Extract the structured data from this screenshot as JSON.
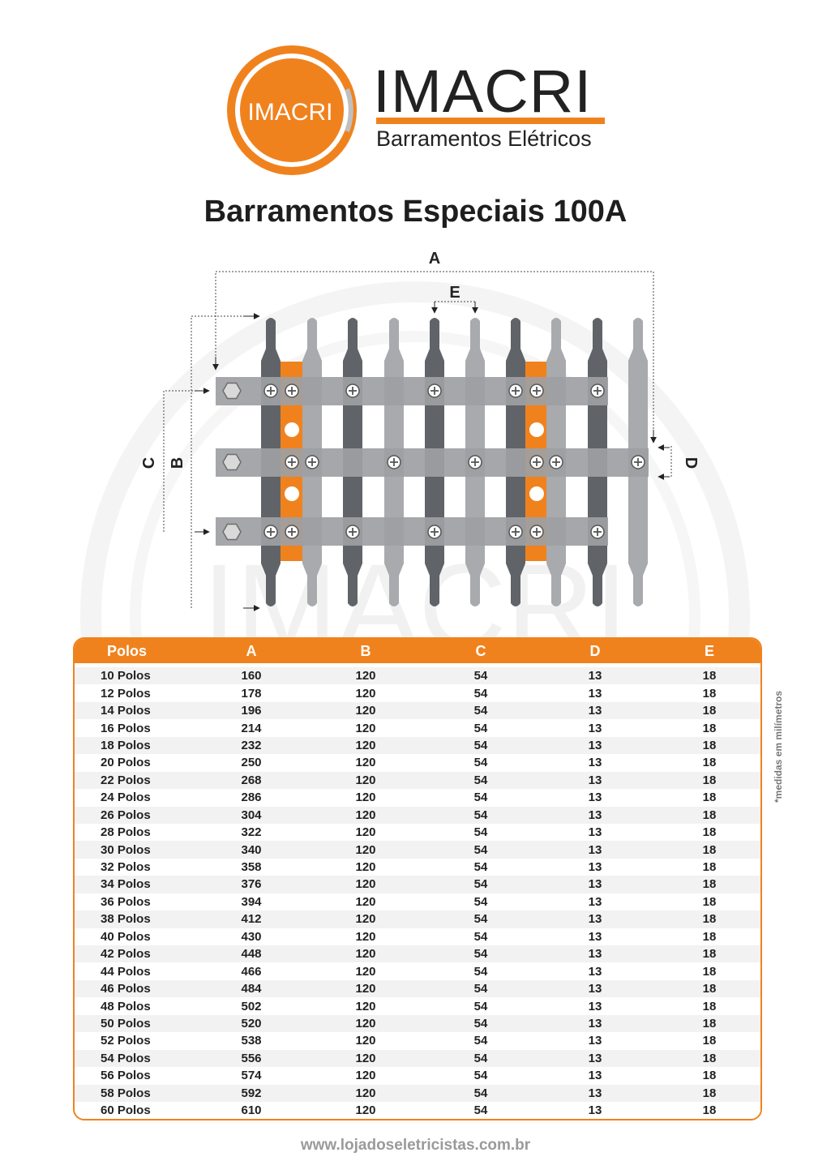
{
  "brand": {
    "logo_text": "IMACRI",
    "name": "IMACRI",
    "subtitle": "Barramentos Elétricos",
    "accent_color": "#f0821e",
    "watermark_text": "IMACRI"
  },
  "title": "Barramentos Especiais 100A",
  "diagram": {
    "label_a": "A",
    "label_b": "B",
    "label_c": "C",
    "label_d": "D",
    "label_e": "E"
  },
  "table": {
    "headers": [
      "Polos",
      "A",
      "B",
      "C",
      "D",
      "E"
    ],
    "rows": [
      [
        "10 Polos",
        "160",
        "120",
        "54",
        "13",
        "18"
      ],
      [
        "12 Polos",
        "178",
        "120",
        "54",
        "13",
        "18"
      ],
      [
        "14 Polos",
        "196",
        "120",
        "54",
        "13",
        "18"
      ],
      [
        "16 Polos",
        "214",
        "120",
        "54",
        "13",
        "18"
      ],
      [
        "18 Polos",
        "232",
        "120",
        "54",
        "13",
        "18"
      ],
      [
        "20 Polos",
        "250",
        "120",
        "54",
        "13",
        "18"
      ],
      [
        "22 Polos",
        "268",
        "120",
        "54",
        "13",
        "18"
      ],
      [
        "24 Polos",
        "286",
        "120",
        "54",
        "13",
        "18"
      ],
      [
        "26 Polos",
        "304",
        "120",
        "54",
        "13",
        "18"
      ],
      [
        "28 Polos",
        "322",
        "120",
        "54",
        "13",
        "18"
      ],
      [
        "30 Polos",
        "340",
        "120",
        "54",
        "13",
        "18"
      ],
      [
        "32 Polos",
        "358",
        "120",
        "54",
        "13",
        "18"
      ],
      [
        "34 Polos",
        "376",
        "120",
        "54",
        "13",
        "18"
      ],
      [
        "36 Polos",
        "394",
        "120",
        "54",
        "13",
        "18"
      ],
      [
        "38 Polos",
        "412",
        "120",
        "54",
        "13",
        "18"
      ],
      [
        "40 Polos",
        "430",
        "120",
        "54",
        "13",
        "18"
      ],
      [
        "42 Polos",
        "448",
        "120",
        "54",
        "13",
        "18"
      ],
      [
        "44 Polos",
        "466",
        "120",
        "54",
        "13",
        "18"
      ],
      [
        "46 Polos",
        "484",
        "120",
        "54",
        "13",
        "18"
      ],
      [
        "48 Polos",
        "502",
        "120",
        "54",
        "13",
        "18"
      ],
      [
        "50 Polos",
        "520",
        "120",
        "54",
        "13",
        "18"
      ],
      [
        "52 Polos",
        "538",
        "120",
        "54",
        "13",
        "18"
      ],
      [
        "54 Polos",
        "556",
        "120",
        "54",
        "13",
        "18"
      ],
      [
        "56 Polos",
        "574",
        "120",
        "54",
        "13",
        "18"
      ],
      [
        "58 Polos",
        "592",
        "120",
        "54",
        "13",
        "18"
      ],
      [
        "60 Polos",
        "610",
        "120",
        "54",
        "13",
        "18"
      ]
    ]
  },
  "note": "*medidas em milímetros",
  "footer_url": "www.lojadoseletricistas.com.br"
}
